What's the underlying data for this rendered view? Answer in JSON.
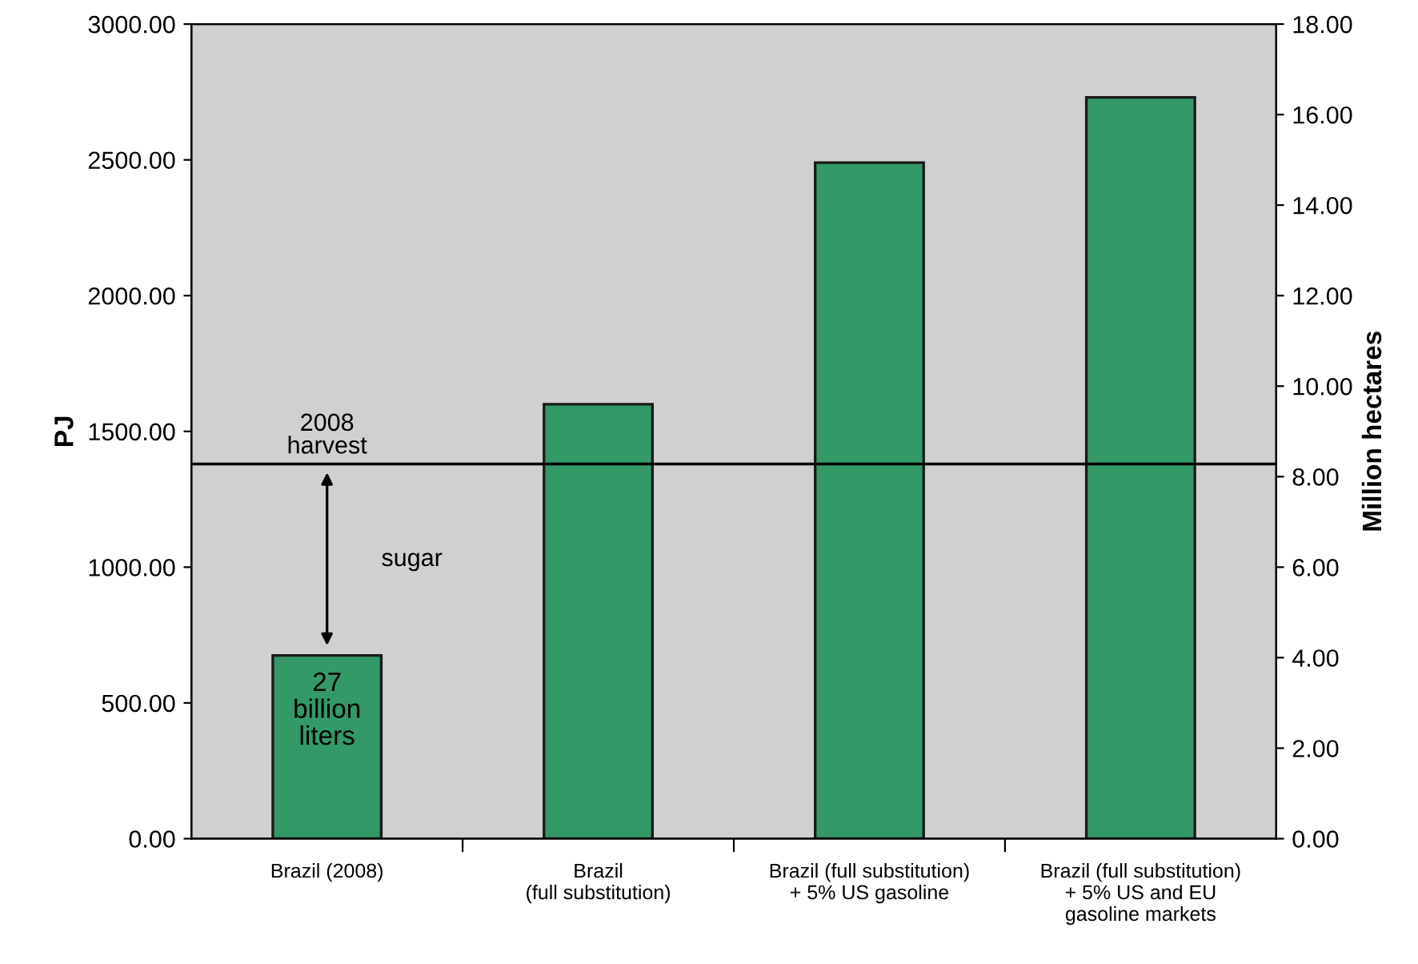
{
  "chart_data": {
    "type": "bar",
    "ylabel": "PJ",
    "y2label": "Million hectares",
    "categories": [
      "Brazil (2008)",
      "Brazil\n(full substitution)",
      "Brazil (full substitution)\n+ 5% US gasoline",
      "Brazil (full substitution)\n+ 5% US and EU\ngasoline markets"
    ],
    "values": [
      675,
      1600,
      2490,
      2730
    ],
    "color": "#339966",
    "ylim": [
      0,
      3000
    ],
    "yticks": [
      {
        "value": 0,
        "label": "0.00"
      },
      {
        "value": 500,
        "label": "500.00"
      },
      {
        "value": 1000,
        "label": "1000.00"
      },
      {
        "value": 1500,
        "label": "1500.00"
      },
      {
        "value": 2000,
        "label": "2000.00"
      },
      {
        "value": 2500,
        "label": "2500.00"
      },
      {
        "value": 3000,
        "label": "3000.00"
      }
    ],
    "y2lim": [
      0,
      18
    ],
    "y2ticks": [
      {
        "value": 0,
        "label": "0.00"
      },
      {
        "value": 2,
        "label": "2.00"
      },
      {
        "value": 4,
        "label": "4.00"
      },
      {
        "value": 6,
        "label": "6.00"
      },
      {
        "value": 8,
        "label": "8.00"
      },
      {
        "value": 10,
        "label": "10.00"
      },
      {
        "value": 12,
        "label": "12.00"
      },
      {
        "value": 14,
        "label": "14.00"
      },
      {
        "value": 16,
        "label": "16.00"
      },
      {
        "value": 18,
        "label": "18.00"
      }
    ],
    "ref_lines": [
      {
        "axis": "y",
        "value": 1380,
        "label": "2008\nharvest",
        "color": "#000000"
      }
    ],
    "annotations": [
      "27\nbillion\nliters",
      "sugar"
    ],
    "grid": false
  }
}
